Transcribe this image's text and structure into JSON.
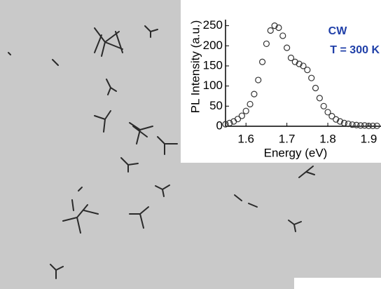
{
  "chart_data": {
    "type": "scatter",
    "xlabel": "Energy (eV)",
    "ylabel": "PL Intensity (a.u.)",
    "annotations": [
      "CW",
      "T = 300 K"
    ],
    "annotation_color": "#1f3fa8",
    "marker_color": "#333333",
    "x": [
      1.55,
      1.56,
      1.57,
      1.58,
      1.59,
      1.6,
      1.61,
      1.62,
      1.63,
      1.64,
      1.65,
      1.66,
      1.67,
      1.68,
      1.69,
      1.7,
      1.71,
      1.72,
      1.73,
      1.74,
      1.75,
      1.76,
      1.77,
      1.78,
      1.79,
      1.8,
      1.81,
      1.82,
      1.83,
      1.84,
      1.85,
      1.86,
      1.87,
      1.88,
      1.89,
      1.9,
      1.91,
      1.92
    ],
    "values": [
      5,
      8,
      12,
      18,
      26,
      38,
      55,
      80,
      115,
      160,
      205,
      238,
      250,
      245,
      225,
      195,
      170,
      160,
      155,
      150,
      140,
      120,
      95,
      70,
      50,
      35,
      25,
      17,
      12,
      8,
      6,
      4,
      3,
      2,
      2,
      1,
      1,
      1
    ],
    "xlim": [
      1.55,
      1.93
    ],
    "ylim": [
      0,
      265
    ],
    "xticks": [
      1.6,
      1.7,
      1.8,
      1.9
    ],
    "yticks": [
      0,
      50,
      100,
      150,
      200,
      250
    ]
  }
}
